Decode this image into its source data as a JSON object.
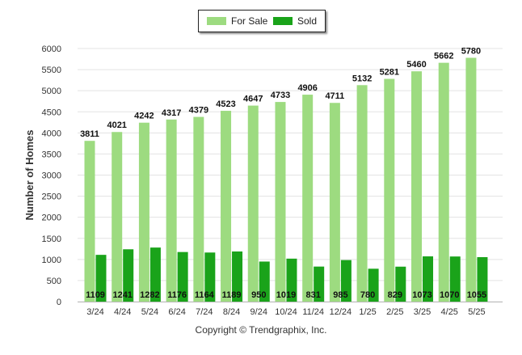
{
  "chart_data": {
    "type": "bar",
    "ylabel": "Number of Homes",
    "xlabel": "",
    "ylim": [
      0,
      6000
    ],
    "yticks": [
      0,
      500,
      1000,
      1500,
      2000,
      2500,
      3000,
      3500,
      4000,
      4500,
      5000,
      5500,
      6000
    ],
    "categories": [
      "3/24",
      "4/24",
      "5/24",
      "6/24",
      "7/24",
      "8/24",
      "9/24",
      "10/24",
      "11/24",
      "12/24",
      "1/25",
      "2/25",
      "3/25",
      "4/25",
      "5/25"
    ],
    "series": [
      {
        "name": "For Sale",
        "color": "#9ddb80",
        "values": [
          3811,
          4021,
          4242,
          4317,
          4379,
          4523,
          4647,
          4733,
          4906,
          4711,
          5132,
          5281,
          5460,
          5662,
          5780
        ]
      },
      {
        "name": "Sold",
        "color": "#1aa31a",
        "values": [
          1109,
          1241,
          1282,
          1176,
          1164,
          1189,
          950,
          1019,
          831,
          985,
          780,
          829,
          1073,
          1070,
          1055
        ]
      }
    ],
    "legend_position": "top-center",
    "grid": true
  },
  "footer": {
    "copyright": "Copyright © Trendgraphix, Inc."
  }
}
